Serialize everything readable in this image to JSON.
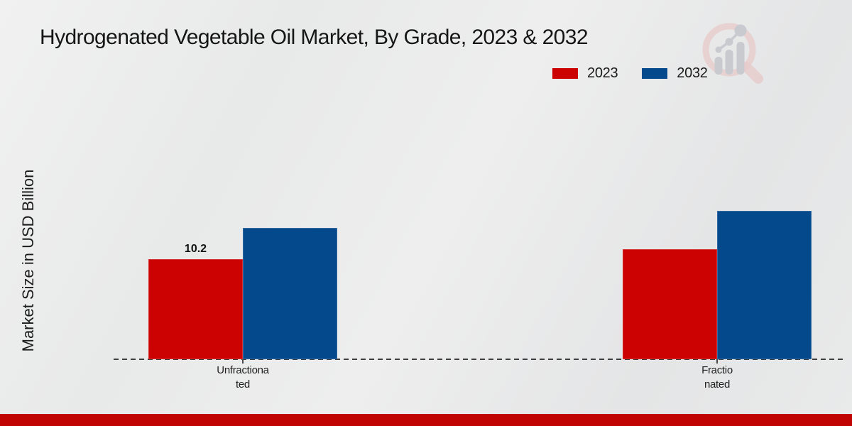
{
  "page": {
    "title": "Hydrogenated Vegetable Oil Market, By Grade, 2023 & 2032"
  },
  "axes": {
    "y_label": "Market Size in USD Billion"
  },
  "legend": {
    "items": [
      {
        "label": "2023",
        "color": "#cc0202"
      },
      {
        "label": "2032",
        "color": "#04498c"
      }
    ]
  },
  "chart_data": {
    "type": "bar",
    "title": "Hydrogenated Vegetable Oil Market, By Grade, 2023 & 2032",
    "xlabel": "",
    "ylabel": "Market Size in USD Billion",
    "categories": [
      "Unfractionated",
      "Fractionated"
    ],
    "category_tick_lines": [
      [
        "Unfractiona",
        "ted"
      ],
      [
        "Fractio",
        "nated"
      ]
    ],
    "series": [
      {
        "name": "2023",
        "color": "#cc0202",
        "values": [
          10.2,
          11.2
        ]
      },
      {
        "name": "2032",
        "color": "#04498c",
        "values": [
          13.4,
          15.1
        ]
      }
    ],
    "data_labels": [
      {
        "series_index": 0,
        "category_index": 0,
        "text": "10.2"
      }
    ],
    "ylim": [
      0,
      16
    ],
    "grid": false,
    "legend_position": "upper right",
    "baseline_style": "dashed",
    "units": "USD Billion"
  },
  "footer": {
    "color": "#c00404"
  },
  "logo": {
    "name": "magnifier-bar-chart-logo",
    "ring_color": "#e7cccd",
    "bars_color": "#c8cad0"
  }
}
